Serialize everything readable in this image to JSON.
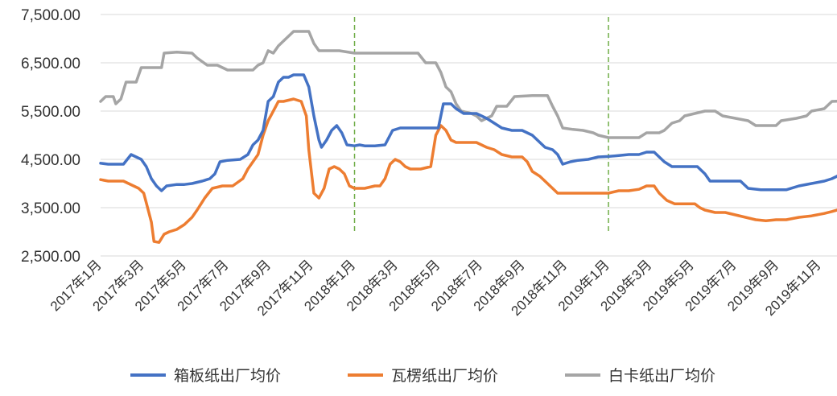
{
  "chart_data": {
    "type": "line",
    "title": "",
    "xlabel": "",
    "ylabel": "",
    "ylim": [
      2500,
      7500
    ],
    "yticks": [
      7500,
      6500,
      5500,
      4500,
      3500,
      2500
    ],
    "ytick_labels": [
      "7,500.00",
      "6,500.00",
      "5,500.00",
      "4,500.00",
      "3,500.00",
      "2,500.00"
    ],
    "xlim": [
      2017.0,
      2019.9
    ],
    "xticks": [
      2017.0,
      2017.1667,
      2017.3333,
      2017.5,
      2017.6667,
      2017.8333,
      2018.0,
      2018.1667,
      2018.3333,
      2018.5,
      2018.6667,
      2018.8333,
      2019.0,
      2019.1667,
      2019.3333,
      2019.5,
      2019.6667,
      2019.8333
    ],
    "xtick_labels": [
      "2017年1月",
      "2017年3月",
      "2017年5月",
      "2017年7月",
      "2017年9月",
      "2017年11月",
      "2018年1月",
      "2018年3月",
      "2018年5月",
      "2018年7月",
      "2018年9月",
      "2018年11月",
      "2019年1月",
      "2019年3月",
      "2019年5月",
      "2019年7月",
      "2019年9月",
      "2019年11月"
    ],
    "grid": "horizontal",
    "legend_position": "bottom",
    "vlines": {
      "x": [
        2018.0,
        2019.0
      ],
      "color": "#70ad47",
      "style": "dashed",
      "y_range": [
        3000,
        7450
      ]
    },
    "series": [
      {
        "name": "箱板纸出厂均价",
        "color": "#4472c4",
        "points": [
          [
            2017.0,
            4420
          ],
          [
            2017.03,
            4400
          ],
          [
            2017.05,
            4400
          ],
          [
            2017.09,
            4400
          ],
          [
            2017.12,
            4600
          ],
          [
            2017.14,
            4550
          ],
          [
            2017.16,
            4500
          ],
          [
            2017.18,
            4350
          ],
          [
            2017.2,
            4100
          ],
          [
            2017.22,
            3950
          ],
          [
            2017.24,
            3850
          ],
          [
            2017.26,
            3950
          ],
          [
            2017.3,
            3980
          ],
          [
            2017.33,
            3980
          ],
          [
            2017.36,
            4000
          ],
          [
            2017.4,
            4050
          ],
          [
            2017.43,
            4100
          ],
          [
            2017.45,
            4200
          ],
          [
            2017.47,
            4450
          ],
          [
            2017.5,
            4480
          ],
          [
            2017.55,
            4500
          ],
          [
            2017.58,
            4600
          ],
          [
            2017.6,
            4800
          ],
          [
            2017.62,
            4900
          ],
          [
            2017.64,
            5100
          ],
          [
            2017.66,
            5700
          ],
          [
            2017.68,
            5800
          ],
          [
            2017.7,
            6100
          ],
          [
            2017.72,
            6200
          ],
          [
            2017.74,
            6200
          ],
          [
            2017.76,
            6250
          ],
          [
            2017.78,
            6250
          ],
          [
            2017.8,
            6250
          ],
          [
            2017.82,
            6000
          ],
          [
            2017.84,
            5400
          ],
          [
            2017.86,
            4900
          ],
          [
            2017.87,
            4750
          ],
          [
            2017.89,
            4900
          ],
          [
            2017.91,
            5100
          ],
          [
            2017.93,
            5200
          ],
          [
            2017.95,
            5050
          ],
          [
            2017.97,
            4800
          ],
          [
            2018.0,
            4780
          ],
          [
            2018.02,
            4800
          ],
          [
            2018.04,
            4780
          ],
          [
            2018.08,
            4780
          ],
          [
            2018.12,
            4800
          ],
          [
            2018.15,
            5100
          ],
          [
            2018.18,
            5150
          ],
          [
            2018.22,
            5150
          ],
          [
            2018.26,
            5150
          ],
          [
            2018.3,
            5150
          ],
          [
            2018.33,
            5150
          ],
          [
            2018.35,
            5650
          ],
          [
            2018.38,
            5650
          ],
          [
            2018.4,
            5550
          ],
          [
            2018.43,
            5450
          ],
          [
            2018.48,
            5450
          ],
          [
            2018.52,
            5350
          ],
          [
            2018.55,
            5250
          ],
          [
            2018.58,
            5150
          ],
          [
            2018.62,
            5100
          ],
          [
            2018.66,
            5100
          ],
          [
            2018.7,
            5000
          ],
          [
            2018.72,
            4900
          ],
          [
            2018.75,
            4750
          ],
          [
            2018.78,
            4700
          ],
          [
            2018.8,
            4600
          ],
          [
            2018.82,
            4400
          ],
          [
            2018.85,
            4450
          ],
          [
            2018.88,
            4480
          ],
          [
            2018.92,
            4500
          ],
          [
            2018.96,
            4550
          ],
          [
            2019.0,
            4560
          ],
          [
            2019.04,
            4580
          ],
          [
            2019.08,
            4600
          ],
          [
            2019.12,
            4600
          ],
          [
            2019.15,
            4650
          ],
          [
            2019.18,
            4650
          ],
          [
            2019.2,
            4550
          ],
          [
            2019.22,
            4450
          ],
          [
            2019.25,
            4350
          ],
          [
            2019.3,
            4350
          ],
          [
            2019.35,
            4350
          ],
          [
            2019.38,
            4200
          ],
          [
            2019.4,
            4050
          ],
          [
            2019.45,
            4050
          ],
          [
            2019.52,
            4050
          ],
          [
            2019.55,
            3900
          ],
          [
            2019.6,
            3870
          ],
          [
            2019.65,
            3870
          ],
          [
            2019.7,
            3870
          ],
          [
            2019.75,
            3950
          ],
          [
            2019.8,
            4000
          ],
          [
            2019.85,
            4050
          ],
          [
            2019.88,
            4100
          ],
          [
            2019.9,
            4150
          ],
          [
            2019.93,
            4250
          ],
          [
            2019.96,
            4250
          ]
        ]
      },
      {
        "name": "瓦楞纸出厂均价",
        "color": "#ed7d31",
        "points": [
          [
            2017.0,
            4080
          ],
          [
            2017.03,
            4050
          ],
          [
            2017.06,
            4050
          ],
          [
            2017.09,
            4050
          ],
          [
            2017.11,
            4000
          ],
          [
            2017.13,
            3950
          ],
          [
            2017.15,
            3900
          ],
          [
            2017.17,
            3800
          ],
          [
            2017.18,
            3600
          ],
          [
            2017.2,
            3200
          ],
          [
            2017.21,
            2800
          ],
          [
            2017.23,
            2780
          ],
          [
            2017.25,
            2950
          ],
          [
            2017.27,
            3000
          ],
          [
            2017.3,
            3050
          ],
          [
            2017.33,
            3150
          ],
          [
            2017.36,
            3300
          ],
          [
            2017.38,
            3450
          ],
          [
            2017.41,
            3700
          ],
          [
            2017.44,
            3900
          ],
          [
            2017.48,
            3950
          ],
          [
            2017.52,
            3950
          ],
          [
            2017.56,
            4100
          ],
          [
            2017.58,
            4300
          ],
          [
            2017.6,
            4450
          ],
          [
            2017.62,
            4600
          ],
          [
            2017.64,
            5000
          ],
          [
            2017.66,
            5300
          ],
          [
            2017.68,
            5500
          ],
          [
            2017.7,
            5700
          ],
          [
            2017.72,
            5700
          ],
          [
            2017.76,
            5750
          ],
          [
            2017.79,
            5700
          ],
          [
            2017.81,
            5400
          ],
          [
            2017.82,
            4700
          ],
          [
            2017.84,
            3800
          ],
          [
            2017.86,
            3700
          ],
          [
            2017.88,
            3900
          ],
          [
            2017.9,
            4300
          ],
          [
            2017.92,
            4350
          ],
          [
            2017.94,
            4300
          ],
          [
            2017.96,
            4200
          ],
          [
            2017.98,
            3950
          ],
          [
            2018.0,
            3900
          ],
          [
            2018.04,
            3900
          ],
          [
            2018.08,
            3950
          ],
          [
            2018.1,
            3950
          ],
          [
            2018.12,
            4100
          ],
          [
            2018.14,
            4400
          ],
          [
            2018.16,
            4500
          ],
          [
            2018.18,
            4450
          ],
          [
            2018.2,
            4350
          ],
          [
            2018.22,
            4300
          ],
          [
            2018.26,
            4300
          ],
          [
            2018.3,
            4350
          ],
          [
            2018.32,
            5000
          ],
          [
            2018.34,
            5200
          ],
          [
            2018.36,
            5100
          ],
          [
            2018.38,
            4900
          ],
          [
            2018.4,
            4850
          ],
          [
            2018.44,
            4850
          ],
          [
            2018.48,
            4850
          ],
          [
            2018.52,
            4750
          ],
          [
            2018.55,
            4700
          ],
          [
            2018.58,
            4600
          ],
          [
            2018.62,
            4550
          ],
          [
            2018.66,
            4550
          ],
          [
            2018.68,
            4450
          ],
          [
            2018.7,
            4250
          ],
          [
            2018.73,
            4150
          ],
          [
            2018.76,
            4000
          ],
          [
            2018.78,
            3900
          ],
          [
            2018.8,
            3800
          ],
          [
            2018.84,
            3800
          ],
          [
            2018.88,
            3800
          ],
          [
            2018.92,
            3800
          ],
          [
            2018.96,
            3800
          ],
          [
            2019.0,
            3800
          ],
          [
            2019.04,
            3850
          ],
          [
            2019.08,
            3850
          ],
          [
            2019.12,
            3880
          ],
          [
            2019.15,
            3950
          ],
          [
            2019.18,
            3950
          ],
          [
            2019.2,
            3800
          ],
          [
            2019.23,
            3650
          ],
          [
            2019.26,
            3580
          ],
          [
            2019.3,
            3580
          ],
          [
            2019.34,
            3580
          ],
          [
            2019.36,
            3500
          ],
          [
            2019.38,
            3450
          ],
          [
            2019.42,
            3400
          ],
          [
            2019.46,
            3400
          ],
          [
            2019.5,
            3350
          ],
          [
            2019.54,
            3300
          ],
          [
            2019.58,
            3250
          ],
          [
            2019.62,
            3230
          ],
          [
            2019.66,
            3250
          ],
          [
            2019.7,
            3250
          ],
          [
            2019.75,
            3300
          ],
          [
            2019.8,
            3330
          ],
          [
            2019.85,
            3380
          ],
          [
            2019.88,
            3420
          ],
          [
            2019.92,
            3480
          ],
          [
            2019.96,
            3520
          ]
        ]
      },
      {
        "name": "白卡纸出厂均价",
        "color": "#a5a5a5",
        "points": [
          [
            2017.0,
            5700
          ],
          [
            2017.02,
            5800
          ],
          [
            2017.05,
            5800
          ],
          [
            2017.06,
            5650
          ],
          [
            2017.08,
            5750
          ],
          [
            2017.1,
            6100
          ],
          [
            2017.14,
            6100
          ],
          [
            2017.16,
            6400
          ],
          [
            2017.2,
            6400
          ],
          [
            2017.24,
            6400
          ],
          [
            2017.25,
            6700
          ],
          [
            2017.3,
            6720
          ],
          [
            2017.36,
            6700
          ],
          [
            2017.38,
            6600
          ],
          [
            2017.42,
            6450
          ],
          [
            2017.46,
            6450
          ],
          [
            2017.48,
            6400
          ],
          [
            2017.5,
            6350
          ],
          [
            2017.55,
            6350
          ],
          [
            2017.6,
            6350
          ],
          [
            2017.62,
            6450
          ],
          [
            2017.64,
            6500
          ],
          [
            2017.66,
            6750
          ],
          [
            2017.68,
            6700
          ],
          [
            2017.7,
            6850
          ],
          [
            2017.72,
            6950
          ],
          [
            2017.74,
            7050
          ],
          [
            2017.76,
            7150
          ],
          [
            2017.82,
            7150
          ],
          [
            2017.84,
            6900
          ],
          [
            2017.86,
            6750
          ],
          [
            2017.9,
            6750
          ],
          [
            2017.94,
            6750
          ],
          [
            2018.0,
            6700
          ],
          [
            2018.05,
            6700
          ],
          [
            2018.1,
            6700
          ],
          [
            2018.15,
            6700
          ],
          [
            2018.2,
            6700
          ],
          [
            2018.25,
            6700
          ],
          [
            2018.28,
            6500
          ],
          [
            2018.32,
            6500
          ],
          [
            2018.34,
            6300
          ],
          [
            2018.36,
            6000
          ],
          [
            2018.38,
            5900
          ],
          [
            2018.4,
            5650
          ],
          [
            2018.42,
            5500
          ],
          [
            2018.46,
            5450
          ],
          [
            2018.48,
            5400
          ],
          [
            2018.5,
            5300
          ],
          [
            2018.54,
            5400
          ],
          [
            2018.56,
            5600
          ],
          [
            2018.6,
            5600
          ],
          [
            2018.63,
            5800
          ],
          [
            2018.7,
            5820
          ],
          [
            2018.76,
            5820
          ],
          [
            2018.78,
            5600
          ],
          [
            2018.8,
            5400
          ],
          [
            2018.82,
            5150
          ],
          [
            2018.86,
            5120
          ],
          [
            2018.9,
            5100
          ],
          [
            2018.94,
            5050
          ],
          [
            2018.96,
            5000
          ],
          [
            2019.0,
            4950
          ],
          [
            2019.06,
            4950
          ],
          [
            2019.12,
            4950
          ],
          [
            2019.15,
            5050
          ],
          [
            2019.2,
            5050
          ],
          [
            2019.22,
            5100
          ],
          [
            2019.25,
            5250
          ],
          [
            2019.28,
            5300
          ],
          [
            2019.3,
            5400
          ],
          [
            2019.34,
            5450
          ],
          [
            2019.38,
            5500
          ],
          [
            2019.42,
            5500
          ],
          [
            2019.45,
            5400
          ],
          [
            2019.5,
            5350
          ],
          [
            2019.55,
            5300
          ],
          [
            2019.58,
            5200
          ],
          [
            2019.62,
            5200
          ],
          [
            2019.66,
            5200
          ],
          [
            2019.68,
            5300
          ],
          [
            2019.74,
            5350
          ],
          [
            2019.78,
            5400
          ],
          [
            2019.8,
            5500
          ],
          [
            2019.85,
            5550
          ],
          [
            2019.88,
            5700
          ],
          [
            2019.96,
            5720
          ]
        ]
      }
    ]
  }
}
